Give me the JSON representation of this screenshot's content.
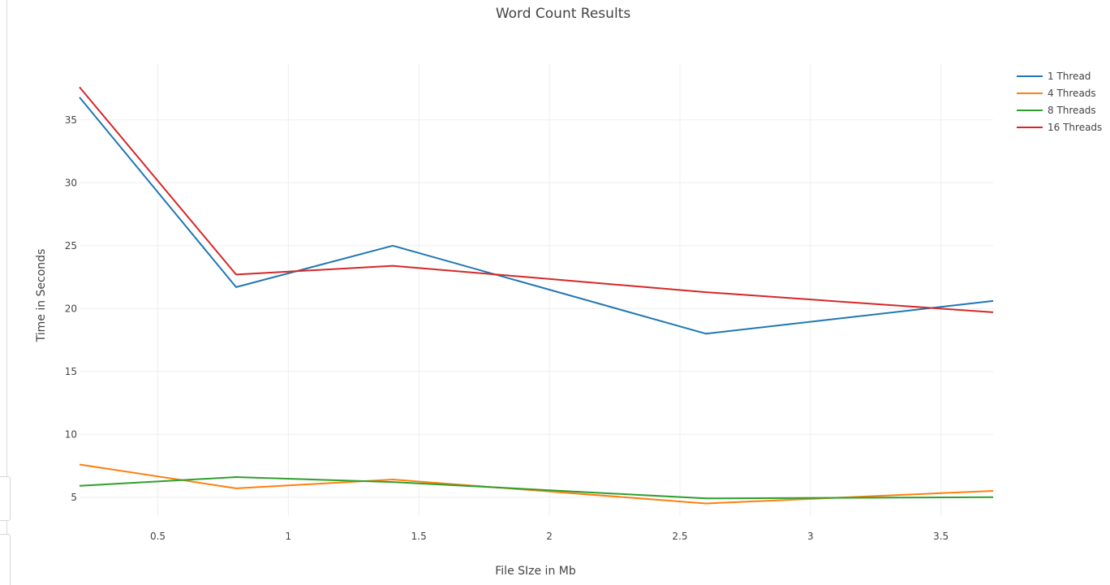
{
  "chart_data": {
    "type": "line",
    "title": "Word Count Results",
    "xlabel": "File SIze in Mb",
    "ylabel": "Time in Seconds",
    "xlim": [
      0.2,
      3.7
    ],
    "ylim": [
      3.5,
      39.5
    ],
    "grid": true,
    "legend_position": "top-right",
    "x_ticks": [
      0.5,
      1,
      1.5,
      2,
      2.5,
      3,
      3.5
    ],
    "x_tick_labels": [
      "0.5",
      "1",
      "1.5",
      "2",
      "2.5",
      "3",
      "3.5"
    ],
    "y_ticks": [
      5,
      10,
      15,
      20,
      25,
      30,
      35
    ],
    "y_tick_labels": [
      "5",
      "10",
      "15",
      "20",
      "25",
      "30",
      "35"
    ],
    "x": [
      0.2,
      0.8,
      1.4,
      2.6,
      3.7
    ],
    "series": [
      {
        "name": "1 Thread",
        "color": "#1f77b4",
        "values": [
          36.8,
          21.7,
          25.0,
          18.0,
          20.6
        ]
      },
      {
        "name": "4 Threads",
        "color": "#ff7f0e",
        "values": [
          7.6,
          5.7,
          6.4,
          4.5,
          5.5
        ]
      },
      {
        "name": "8 Threads",
        "color": "#2ca02c",
        "values": [
          5.9,
          6.6,
          6.2,
          4.9,
          5.0
        ]
      },
      {
        "name": "16 Threads",
        "color": "#d62728",
        "values": [
          37.6,
          22.7,
          23.4,
          21.3,
          19.7
        ]
      }
    ]
  }
}
